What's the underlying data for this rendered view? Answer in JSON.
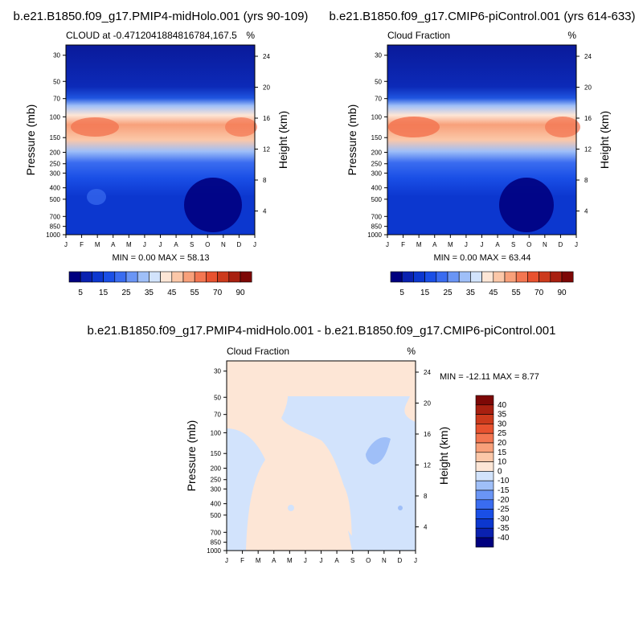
{
  "panels": {
    "top_left": {
      "title": "b.e21.B1850.f09_g17.PMIP4-midHolo.001 (yrs 90-109)",
      "subtitle_left": "CLOUD at -0.4712041884816784,167.5",
      "subtitle_right": "%",
      "stats": "MIN =   0.00 MAX =  58.13"
    },
    "top_right": {
      "title": "b.e21.B1850.f09_g17.CMIP6-piControl.001 (yrs 614-633)",
      "subtitle_left": "Cloud Fraction",
      "subtitle_right": "%",
      "stats": "MIN =   0.00 MAX =  63.44"
    },
    "bottom": {
      "title": "b.e21.B1850.f09_g17.PMIP4-midHolo.001 - b.e21.B1850.f09_g17.CMIP6-piControl.001",
      "subtitle_left": "Cloud Fraction",
      "subtitle_right": "%",
      "stats": "MIN = -12.11 MAX =   8.77"
    }
  },
  "axes": {
    "ylabel_left": "Pressure (mb)",
    "ylabel_right": "Height (km)",
    "pressure_ticks": [
      "30",
      "50",
      "70",
      "100",
      "150",
      "200",
      "250",
      "300",
      "400",
      "500",
      "700",
      "850",
      "1000"
    ],
    "height_ticks": [
      "24",
      "20",
      "16",
      "12",
      "8",
      "4"
    ],
    "month_ticks": [
      "J",
      "F",
      "M",
      "A",
      "M",
      "J",
      "J",
      "A",
      "S",
      "O",
      "N",
      "D",
      "J"
    ]
  },
  "colorbars": {
    "abs_labels": [
      "5",
      "15",
      "25",
      "35",
      "45",
      "55",
      "70",
      "90"
    ],
    "abs_colors": [
      "#00007f",
      "#0a21b0",
      "#0c37cf",
      "#1a4fe6",
      "#3a6cf0",
      "#6a95f5",
      "#9fbff8",
      "#d2e3fc",
      "#fde6d6",
      "#fbc7a8",
      "#f8a07a",
      "#f37651",
      "#e8522f",
      "#cc3a1c",
      "#a82010",
      "#7d0806"
    ],
    "diff_labels": [
      "40",
      "35",
      "30",
      "25",
      "20",
      "15",
      "10",
      "0",
      "-10",
      "-15",
      "-20",
      "-25",
      "-30",
      "-35",
      "-40"
    ],
    "diff_colors": [
      "#7d0806",
      "#a82010",
      "#cc3a1c",
      "#e8522f",
      "#f37651",
      "#f8a07a",
      "#fbc7a8",
      "#fde6d6",
      "#d2e3fc",
      "#9fbff8",
      "#6a95f5",
      "#3a6cf0",
      "#1a4fe6",
      "#0c37cf",
      "#0a21b0",
      "#00007f"
    ]
  },
  "chart_data": [
    {
      "type": "heatmap",
      "title": "b.e21.B1850.f09_g17.PMIP4-midHolo.001 (yrs 90-109)",
      "variable": "CLOUD at -0.4712041884816784,167.5",
      "units": "%",
      "x": [
        "J",
        "F",
        "M",
        "A",
        "M",
        "J",
        "J",
        "A",
        "S",
        "O",
        "N",
        "D",
        "J"
      ],
      "ylabel": "Pressure (mb)",
      "y2label": "Height (km)",
      "min": 0.0,
      "max": 58.13,
      "levels": [
        5,
        10,
        15,
        20,
        25,
        30,
        35,
        40,
        45,
        50,
        55,
        60,
        70,
        80,
        90
      ]
    },
    {
      "type": "heatmap",
      "title": "b.e21.B1850.f09_g17.CMIP6-piControl.001 (yrs 614-633)",
      "variable": "Cloud Fraction",
      "units": "%",
      "x": [
        "J",
        "F",
        "M",
        "A",
        "M",
        "J",
        "J",
        "A",
        "S",
        "O",
        "N",
        "D",
        "J"
      ],
      "ylabel": "Pressure (mb)",
      "y2label": "Height (km)",
      "min": 0.0,
      "max": 63.44,
      "levels": [
        5,
        10,
        15,
        20,
        25,
        30,
        35,
        40,
        45,
        50,
        55,
        60,
        70,
        80,
        90
      ]
    },
    {
      "type": "heatmap",
      "title": "b.e21.B1850.f09_g17.PMIP4-midHolo.001 - b.e21.B1850.f09_g17.CMIP6-piControl.001",
      "variable": "Cloud Fraction",
      "units": "%",
      "x": [
        "J",
        "F",
        "M",
        "A",
        "M",
        "J",
        "J",
        "A",
        "S",
        "O",
        "N",
        "D",
        "J"
      ],
      "ylabel": "Pressure (mb)",
      "y2label": "Height (km)",
      "min": -12.11,
      "max": 8.77,
      "levels": [
        -40,
        -35,
        -30,
        -25,
        -20,
        -15,
        -10,
        0,
        10,
        15,
        20,
        25,
        30,
        35,
        40
      ]
    }
  ]
}
